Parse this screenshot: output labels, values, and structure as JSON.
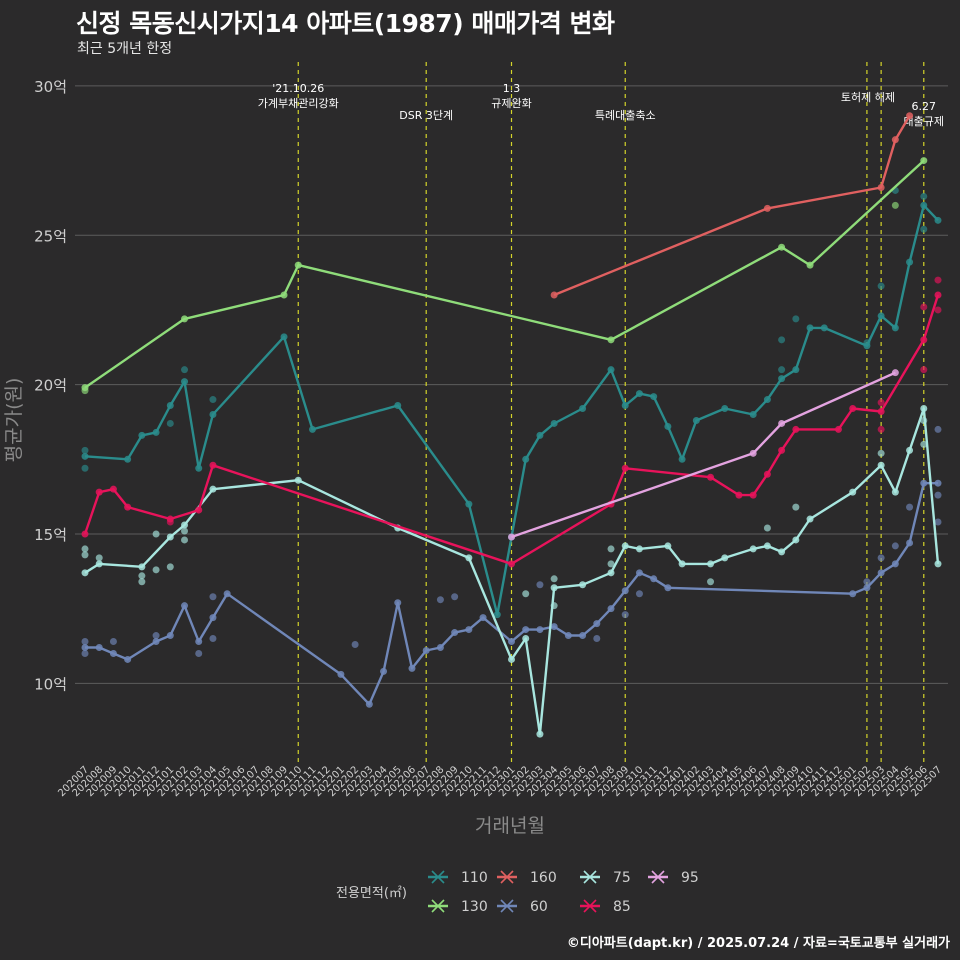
{
  "header": {
    "title": "신정 목동신시가지14 아파트(1987) 매매가격 변화",
    "subtitle": "최근 5개년 한정"
  },
  "footer": {
    "credit": "©디아파트(dapt.kr) / 2025.07.24 / 자료=국토교통부 실거래가"
  },
  "chart_data": {
    "type": "line",
    "title": "신정 목동신시가지14 아파트(1987) 매매가격 변화",
    "subtitle": "최근 5개년 한정",
    "xlabel": "거래년월",
    "ylabel": "평균가(원)",
    "y_unit_label": "억",
    "ylim": [
      7.3,
      30.8
    ],
    "yticks": [
      10,
      15,
      20,
      25,
      30
    ],
    "ytick_labels": [
      "10억",
      "15억",
      "20억",
      "25억",
      "30억"
    ],
    "grid": true,
    "legend_position": "bottom",
    "legend_title": "전용면적(㎡)",
    "categories": [
      "202007",
      "202008",
      "202009",
      "202010",
      "202011",
      "202012",
      "202101",
      "202102",
      "202103",
      "202104",
      "202105",
      "202106",
      "202107",
      "202108",
      "202109",
      "202110",
      "202111",
      "202112",
      "202201",
      "202202",
      "202203",
      "202204",
      "202205",
      "202206",
      "202207",
      "202208",
      "202209",
      "202210",
      "202211",
      "202212",
      "202301",
      "202302",
      "202303",
      "202304",
      "202305",
      "202306",
      "202307",
      "202308",
      "202309",
      "202310",
      "202311",
      "202312",
      "202401",
      "202402",
      "202403",
      "202404",
      "202405",
      "202406",
      "202407",
      "202408",
      "202409",
      "202410",
      "202411",
      "202412",
      "202501",
      "202502",
      "202503",
      "202504",
      "202505",
      "202506",
      "202507"
    ],
    "events": [
      {
        "x": "202110",
        "label": "'21.10.26\n가계부채관리강화",
        "label_row": 1
      },
      {
        "x": "202207",
        "label": "DSR 3단계",
        "label_row": 2
      },
      {
        "x": "202301",
        "label": "1.3\n규제완화",
        "label_row": 1
      },
      {
        "x": "202309",
        "label": "특례대출축소",
        "label_row": 2
      },
      {
        "x": "202502",
        "label": "토허제 해제",
        "label_row": 1
      },
      {
        "x": "202503",
        "label": "",
        "label_row": 1
      },
      {
        "x": "202506",
        "label": "6.27\n대출규제",
        "label_row": 1
      }
    ],
    "series": [
      {
        "name": "110",
        "color": "#2a8c8c",
        "points": [
          [
            "202007",
            17.6
          ],
          [
            "202010",
            17.5
          ],
          [
            "202011",
            18.3
          ],
          [
            "202012",
            18.4
          ],
          [
            "202101",
            19.3
          ],
          [
            "202102",
            20.1
          ],
          [
            "202103",
            17.2
          ],
          [
            "202104",
            19.0
          ],
          [
            "202109",
            21.6
          ],
          [
            "202111",
            18.5
          ],
          [
            "202205",
            19.3
          ],
          [
            "202210",
            16.0
          ],
          [
            "202212",
            12.3
          ],
          [
            "202301",
            14.9
          ],
          [
            "202302",
            17.5
          ],
          [
            "202303",
            18.3
          ],
          [
            "202304",
            18.7
          ],
          [
            "202306",
            19.2
          ],
          [
            "202308",
            20.5
          ],
          [
            "202309",
            19.3
          ],
          [
            "202310",
            19.7
          ],
          [
            "202311",
            19.6
          ],
          [
            "202312",
            18.6
          ],
          [
            "202401",
            17.5
          ],
          [
            "202402",
            18.8
          ],
          [
            "202404",
            19.2
          ],
          [
            "202406",
            19.0
          ],
          [
            "202407",
            19.5
          ],
          [
            "202408",
            20.2
          ],
          [
            "202409",
            20.5
          ],
          [
            "202410",
            21.9
          ],
          [
            "202411",
            21.9
          ],
          [
            "202502",
            21.3
          ],
          [
            "202503",
            22.3
          ],
          [
            "202504",
            21.9
          ],
          [
            "202505",
            24.1
          ],
          [
            "202506",
            26.0
          ],
          [
            "202507",
            25.5
          ]
        ],
        "extra": [
          [
            "202007",
            17.8
          ],
          [
            "202007",
            17.2
          ],
          [
            "202101",
            18.7
          ],
          [
            "202102",
            20.5
          ],
          [
            "202104",
            19.5
          ],
          [
            "202408",
            20.5
          ],
          [
            "202408",
            21.5
          ],
          [
            "202409",
            22.2
          ],
          [
            "202502",
            21.4
          ],
          [
            "202503",
            23.3
          ],
          [
            "202504",
            26.5
          ],
          [
            "202506",
            26.3
          ],
          [
            "202506",
            25.2
          ]
        ]
      },
      {
        "name": "130",
        "color": "#8fdc7a",
        "points": [
          [
            "202007",
            19.9
          ],
          [
            "202102",
            22.2
          ],
          [
            "202109",
            23.0
          ],
          [
            "202110",
            24.0
          ],
          [
            "202308",
            21.5
          ],
          [
            "202408",
            24.6
          ],
          [
            "202410",
            24.0
          ],
          [
            "202506",
            27.5
          ]
        ],
        "extra": [
          [
            "202007",
            19.8
          ],
          [
            "202504",
            26.0
          ]
        ]
      },
      {
        "name": "160",
        "color": "#e06060",
        "points": [
          [
            "202304",
            23.0
          ],
          [
            "202407",
            25.9
          ],
          [
            "202503",
            26.6
          ],
          [
            "202504",
            28.2
          ],
          [
            "202505",
            29.0
          ]
        ],
        "extra": []
      },
      {
        "name": "60",
        "color": "#7087b8",
        "points": [
          [
            "202007",
            11.2
          ],
          [
            "202008",
            11.2
          ],
          [
            "202009",
            11.0
          ],
          [
            "202010",
            10.8
          ],
          [
            "202012",
            11.4
          ],
          [
            "202101",
            11.6
          ],
          [
            "202102",
            12.6
          ],
          [
            "202103",
            11.4
          ],
          [
            "202104",
            12.2
          ],
          [
            "202105",
            13.0
          ],
          [
            "202201",
            10.3
          ],
          [
            "202203",
            9.3
          ],
          [
            "202204",
            10.4
          ],
          [
            "202205",
            12.7
          ],
          [
            "202206",
            10.5
          ],
          [
            "202207",
            11.1
          ],
          [
            "202208",
            11.2
          ],
          [
            "202209",
            11.7
          ],
          [
            "202210",
            11.8
          ],
          [
            "202211",
            12.2
          ],
          [
            "202301",
            11.4
          ],
          [
            "202302",
            11.8
          ],
          [
            "202303",
            11.8
          ],
          [
            "202304",
            11.9
          ],
          [
            "202305",
            11.6
          ],
          [
            "202306",
            11.6
          ],
          [
            "202307",
            12.0
          ],
          [
            "202308",
            12.5
          ],
          [
            "202309",
            13.1
          ],
          [
            "202310",
            13.7
          ],
          [
            "202311",
            13.5
          ],
          [
            "202312",
            13.2
          ],
          [
            "202501",
            13.0
          ],
          [
            "202502",
            13.2
          ],
          [
            "202503",
            13.7
          ],
          [
            "202504",
            14.0
          ],
          [
            "202505",
            14.7
          ],
          [
            "202506",
            16.7
          ],
          [
            "202507",
            16.7
          ]
        ],
        "extra": [
          [
            "202007",
            11.4
          ],
          [
            "202007",
            11.0
          ],
          [
            "202009",
            11.4
          ],
          [
            "202012",
            11.6
          ],
          [
            "202103",
            11.0
          ],
          [
            "202104",
            11.5
          ],
          [
            "202104",
            12.9
          ],
          [
            "202208",
            12.8
          ],
          [
            "202209",
            12.9
          ],
          [
            "202202",
            11.3
          ],
          [
            "202303",
            13.3
          ],
          [
            "202307",
            11.5
          ],
          [
            "202309",
            12.3
          ],
          [
            "202310",
            13.0
          ],
          [
            "202502",
            13.4
          ],
          [
            "202503",
            14.2
          ],
          [
            "202504",
            14.6
          ],
          [
            "202505",
            15.9
          ],
          [
            "202507",
            18.5
          ],
          [
            "202507",
            16.3
          ],
          [
            "202507",
            15.4
          ]
        ]
      },
      {
        "name": "75",
        "color": "#a8e6df",
        "points": [
          [
            "202007",
            13.7
          ],
          [
            "202008",
            14.0
          ],
          [
            "202011",
            13.9
          ],
          [
            "202101",
            14.9
          ],
          [
            "202102",
            15.3
          ],
          [
            "202104",
            16.5
          ],
          [
            "202110",
            16.8
          ],
          [
            "202205",
            15.2
          ],
          [
            "202210",
            14.2
          ],
          [
            "202301",
            10.8
          ],
          [
            "202302",
            11.5
          ],
          [
            "202303",
            8.3
          ],
          [
            "202304",
            13.2
          ],
          [
            "202306",
            13.3
          ],
          [
            "202308",
            13.7
          ],
          [
            "202309",
            14.6
          ],
          [
            "202310",
            14.5
          ],
          [
            "202312",
            14.6
          ],
          [
            "202401",
            14.0
          ],
          [
            "202403",
            14.0
          ],
          [
            "202404",
            14.2
          ],
          [
            "202406",
            14.5
          ],
          [
            "202407",
            14.6
          ],
          [
            "202408",
            14.4
          ],
          [
            "202409",
            14.8
          ],
          [
            "202410",
            15.5
          ],
          [
            "202501",
            16.4
          ],
          [
            "202503",
            17.3
          ],
          [
            "202504",
            16.4
          ],
          [
            "202505",
            17.8
          ],
          [
            "202506",
            19.2
          ],
          [
            "202507",
            14.0
          ]
        ],
        "extra": [
          [
            "202007",
            14.3
          ],
          [
            "202007",
            14.5
          ],
          [
            "202008",
            14.2
          ],
          [
            "202011",
            13.6
          ],
          [
            "202011",
            13.4
          ],
          [
            "202012",
            13.8
          ],
          [
            "202012",
            15.0
          ],
          [
            "202101",
            13.9
          ],
          [
            "202102",
            15.1
          ],
          [
            "202102",
            14.8
          ],
          [
            "202302",
            13.0
          ],
          [
            "202304",
            12.6
          ],
          [
            "202304",
            13.5
          ],
          [
            "202308",
            14.0
          ],
          [
            "202308",
            14.5
          ],
          [
            "202403",
            13.4
          ],
          [
            "202407",
            15.2
          ],
          [
            "202409",
            15.9
          ],
          [
            "202503",
            17.7
          ],
          [
            "202506",
            18.8
          ],
          [
            "202506",
            18.0
          ]
        ]
      },
      {
        "name": "85",
        "color": "#e8135b",
        "points": [
          [
            "202007",
            15.0
          ],
          [
            "202008",
            16.4
          ],
          [
            "202009",
            16.5
          ],
          [
            "202010",
            15.9
          ],
          [
            "202101",
            15.5
          ],
          [
            "202103",
            15.8
          ],
          [
            "202104",
            17.3
          ],
          [
            "202301",
            14.0
          ],
          [
            "202308",
            16.0
          ],
          [
            "202309",
            17.2
          ],
          [
            "202403",
            16.9
          ],
          [
            "202405",
            16.3
          ],
          [
            "202406",
            16.3
          ],
          [
            "202407",
            17.0
          ],
          [
            "202408",
            17.8
          ],
          [
            "202409",
            18.5
          ],
          [
            "202412",
            18.5
          ],
          [
            "202501",
            19.2
          ],
          [
            "202503",
            19.1
          ],
          [
            "202506",
            21.5
          ],
          [
            "202507",
            23.0
          ]
        ],
        "extra": [
          [
            "202101",
            15.4
          ],
          [
            "202503",
            18.5
          ],
          [
            "202503",
            19.4
          ],
          [
            "202506",
            22.6
          ],
          [
            "202506",
            20.5
          ],
          [
            "202507",
            23.5
          ],
          [
            "202507",
            22.5
          ]
        ]
      },
      {
        "name": "95",
        "color": "#e3a3e0",
        "points": [
          [
            "202301",
            14.9
          ],
          [
            "202406",
            17.7
          ],
          [
            "202408",
            18.7
          ],
          [
            "202504",
            20.4
          ]
        ],
        "extra": []
      }
    ],
    "legend_items": [
      "110",
      "160",
      "75",
      "95",
      "130",
      "60",
      "85"
    ]
  }
}
